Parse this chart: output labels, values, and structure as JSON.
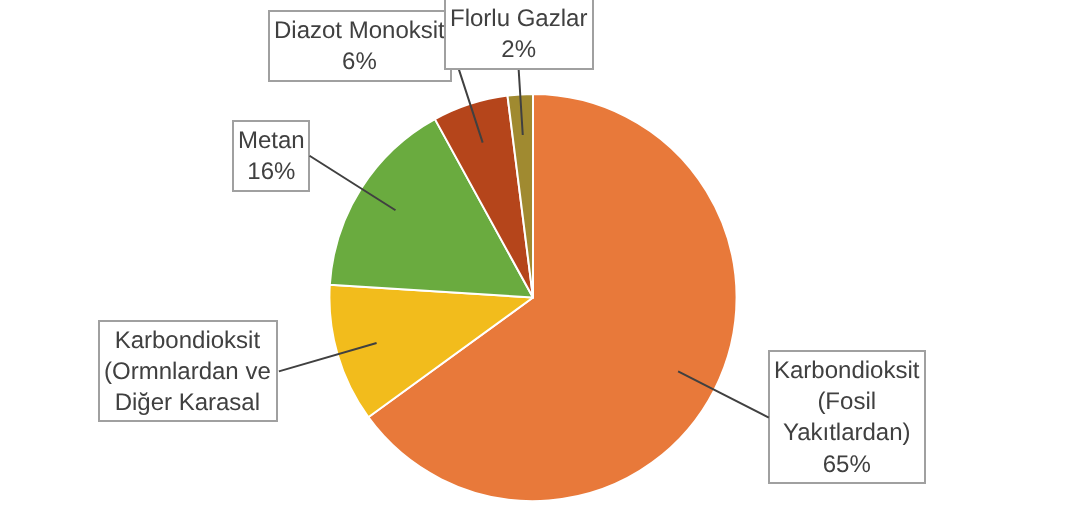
{
  "chart_data": {
    "type": "pie",
    "categories": [
      "Karbondioksit (Fosil Yakıtlardan)",
      "Karbondioksit (Ormnlardan ve Diğer Karasal",
      "Metan",
      "Diazot Monoksit",
      "Florlu Gazlar"
    ],
    "values": [
      65,
      11,
      16,
      6,
      2
    ],
    "value_labels": [
      "65%",
      null,
      "16%",
      "6%",
      "2%"
    ],
    "colors": [
      "#e8793a",
      "#f2bc1c",
      "#6aab3f",
      "#b5451b",
      "#a08a30"
    ],
    "legend": false
  }
}
